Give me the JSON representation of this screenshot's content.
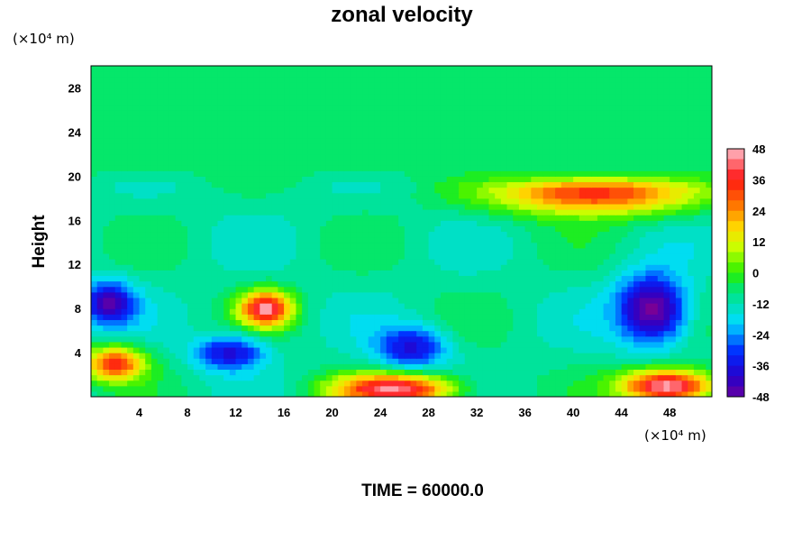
{
  "chart_data": {
    "type": "heatmap",
    "title": "zonal velocity",
    "ylabel": "Height",
    "y_unit": "(×10⁴ m)",
    "x_unit": "(×10⁴ m)",
    "x_ticks": [
      "4",
      "8",
      "12",
      "16",
      "20",
      "24",
      "28",
      "32",
      "36",
      "40",
      "44",
      "48"
    ],
    "y_ticks": [
      "4",
      "8",
      "12",
      "16",
      "20",
      "24",
      "28"
    ],
    "xlim": [
      0,
      51.5
    ],
    "ylim": [
      0,
      30
    ],
    "colorbar": {
      "ticks": [
        "48",
        "36",
        "24",
        "12",
        "0",
        "-12",
        "-24",
        "-36",
        "-48"
      ],
      "range": [
        -48,
        48
      ],
      "step": 4,
      "colormap": "rainbow (purple to pink)"
    },
    "time_label": "TIME = 60000.0",
    "field_features": [
      {
        "description": "uniform weak flow above height ~21",
        "x": [
          0,
          51.5
        ],
        "y": [
          21,
          30
        ],
        "value": -4
      },
      {
        "description": "strong easterly core, right",
        "x": [
          44,
          49
        ],
        "y": [
          5,
          11
        ],
        "value": -48
      },
      {
        "description": "easterly core, left edge",
        "x": [
          0,
          3
        ],
        "y": [
          7,
          10
        ],
        "value": -44
      },
      {
        "description": "easterly pocket",
        "x": [
          24,
          29
        ],
        "y": [
          3,
          6
        ],
        "value": -36
      },
      {
        "description": "easterly pocket",
        "x": [
          9,
          14
        ],
        "y": [
          3,
          5
        ],
        "value": -36
      },
      {
        "description": "strong westerly core",
        "x": [
          13,
          16
        ],
        "y": [
          7,
          9
        ],
        "value": 48
      },
      {
        "description": "strong westerly at surface",
        "x": [
          20,
          30
        ],
        "y": [
          0,
          1.5
        ],
        "value": 48
      },
      {
        "description": "strong westerly at surface, right",
        "x": [
          44,
          51.5
        ],
        "y": [
          0,
          2
        ],
        "value": 48
      },
      {
        "description": "westerly band near height 18-19",
        "x": [
          32,
          51.5
        ],
        "y": [
          17,
          20
        ],
        "value": 36
      },
      {
        "description": "westerly pocket lower left",
        "x": [
          0,
          4
        ],
        "y": [
          2,
          4
        ],
        "value": 36
      }
    ]
  }
}
